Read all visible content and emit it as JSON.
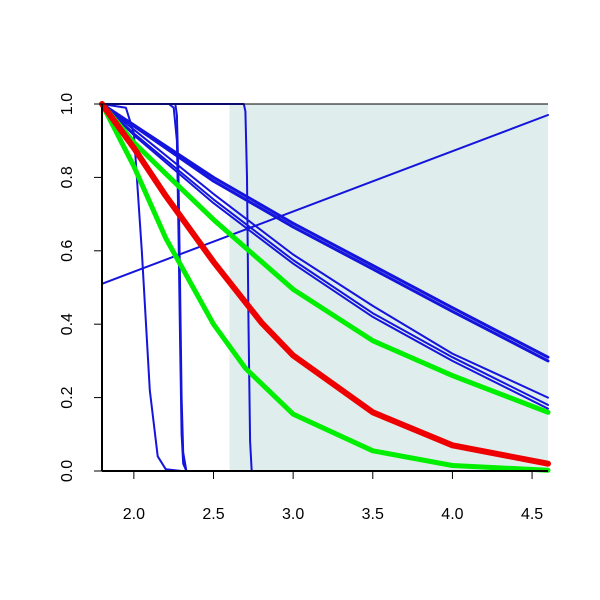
{
  "chart_data": {
    "type": "line",
    "title": "",
    "xlabel": "",
    "ylabel": "",
    "xlim": [
      1.8,
      4.6
    ],
    "ylim": [
      0.0,
      1.0
    ],
    "x_ticks": [
      2.0,
      2.5,
      3.0,
      3.5,
      4.0,
      4.5
    ],
    "x_tick_labels": [
      "2.0",
      "2.5",
      "3.0",
      "3.5",
      "4.0",
      "4.5"
    ],
    "y_ticks": [
      0.0,
      0.2,
      0.4,
      0.6,
      0.8,
      1.0
    ],
    "y_tick_labels": [
      "0.0",
      "0.2",
      "0.4",
      "0.6",
      "0.8",
      "1.0"
    ],
    "grid": false,
    "legend": "none",
    "shaded_region": {
      "x_from": 2.6,
      "x_to": 4.6,
      "color": "#e0eded"
    },
    "series": [
      {
        "color": "#1414dc",
        "width": 2,
        "x": [
          1.8,
          4.6
        ],
        "y": [
          0.51,
          0.97
        ]
      },
      {
        "color": "#1414dc",
        "width": 2,
        "x": [
          1.8,
          1.95,
          2.0,
          2.05,
          2.1,
          2.15,
          2.2,
          2.3,
          4.6
        ],
        "y": [
          1.0,
          0.99,
          0.92,
          0.6,
          0.22,
          0.04,
          0.005,
          0.0,
          0.0
        ]
      },
      {
        "color": "#1414dc",
        "width": 2,
        "x": [
          1.8,
          2.22,
          2.25,
          2.27,
          2.28,
          2.29,
          2.3,
          2.31,
          2.33,
          4.6
        ],
        "y": [
          1.0,
          1.0,
          0.99,
          0.9,
          0.65,
          0.35,
          0.1,
          0.02,
          0.0,
          0.0
        ]
      },
      {
        "color": "#1414dc",
        "width": 2,
        "x": [
          1.8,
          2.26,
          2.27,
          2.28,
          2.29,
          2.3,
          2.31,
          2.33,
          4.6
        ],
        "y": [
          1.0,
          1.0,
          0.97,
          0.8,
          0.5,
          0.2,
          0.05,
          0.0,
          0.0
        ]
      },
      {
        "color": "#1414dc",
        "width": 2,
        "x": [
          1.8,
          2.69,
          2.7,
          2.71,
          2.72,
          2.73,
          2.74,
          4.6
        ],
        "y": [
          1.0,
          1.0,
          0.98,
          0.8,
          0.4,
          0.08,
          0.0,
          0.0
        ]
      },
      {
        "color": "#1414dc",
        "width": 3,
        "x": [
          1.8,
          2.5,
          3.0,
          3.5,
          4.0,
          4.6
        ],
        "y": [
          1.0,
          0.8,
          0.675,
          0.56,
          0.445,
          0.31
        ]
      },
      {
        "color": "#1414dc",
        "width": 3,
        "x": [
          1.8,
          2.5,
          3.0,
          3.5,
          4.0,
          4.6
        ],
        "y": [
          1.0,
          0.79,
          0.665,
          0.55,
          0.435,
          0.3
        ]
      },
      {
        "color": "#1414dc",
        "width": 2,
        "x": [
          1.8,
          2.0,
          2.5,
          3.0,
          3.5,
          4.0,
          4.6
        ],
        "y": [
          1.0,
          0.93,
          0.755,
          0.59,
          0.45,
          0.32,
          0.2
        ]
      },
      {
        "color": "#1414dc",
        "width": 2,
        "x": [
          1.8,
          2.0,
          2.5,
          3.0,
          3.5,
          4.0,
          4.6
        ],
        "y": [
          1.0,
          0.92,
          0.74,
          0.575,
          0.43,
          0.31,
          0.18
        ]
      },
      {
        "color": "#1414dc",
        "width": 2,
        "x": [
          1.8,
          2.0,
          2.5,
          3.0,
          3.5,
          4.0,
          4.6
        ],
        "y": [
          1.0,
          0.915,
          0.73,
          0.565,
          0.42,
          0.3,
          0.17
        ]
      },
      {
        "color": "#00ee00",
        "width": 5,
        "x": [
          1.8,
          2.0,
          2.2,
          2.5,
          3.0,
          3.5,
          4.0,
          4.6
        ],
        "y": [
          1.0,
          0.895,
          0.81,
          0.685,
          0.495,
          0.355,
          0.26,
          0.16
        ]
      },
      {
        "color": "#00ee00",
        "width": 5,
        "x": [
          1.8,
          2.0,
          2.2,
          2.5,
          2.7,
          3.0,
          3.5,
          4.0,
          4.6
        ],
        "y": [
          1.0,
          0.83,
          0.635,
          0.4,
          0.28,
          0.155,
          0.055,
          0.015,
          0.002
        ]
      },
      {
        "color": "#ee0000",
        "width": 6,
        "x": [
          1.8,
          2.0,
          2.2,
          2.5,
          2.8,
          3.0,
          3.5,
          4.0,
          4.6
        ],
        "y": [
          1.0,
          0.88,
          0.75,
          0.57,
          0.405,
          0.315,
          0.16,
          0.07,
          0.02
        ]
      }
    ]
  }
}
